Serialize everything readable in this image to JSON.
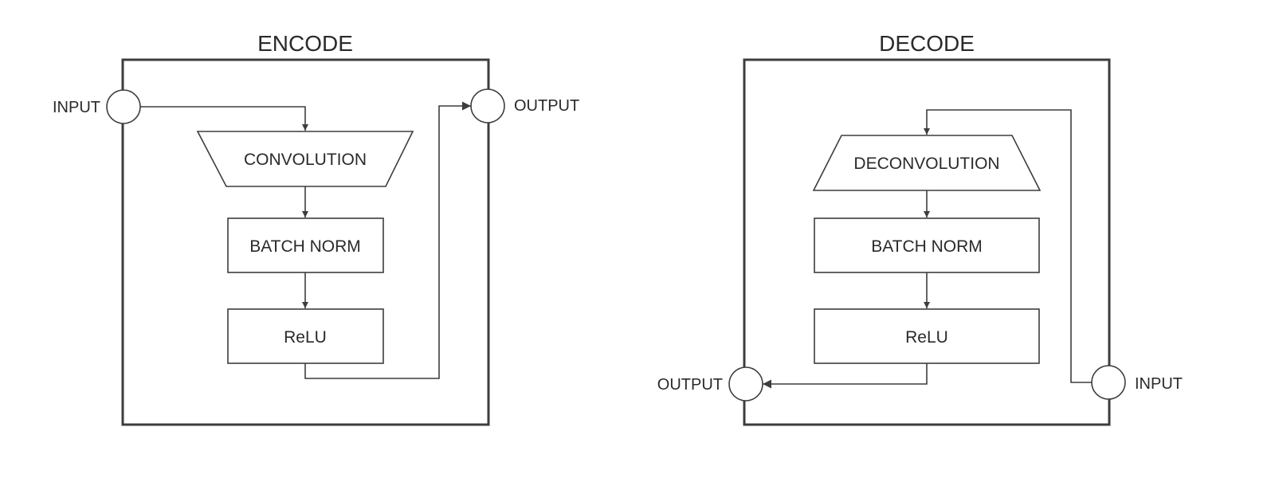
{
  "colors": {
    "stroke": "#3d3d3d",
    "text": "#2a2a2a",
    "background": "#ffffff"
  },
  "encode": {
    "title": "ENCODE",
    "input_label": "INPUT",
    "output_label": "OUTPUT",
    "blocks": [
      "CONVOLUTION",
      "BATCH NORM",
      "ReLU"
    ]
  },
  "decode": {
    "title": "DECODE",
    "input_label": "INPUT",
    "output_label": "OUTPUT",
    "blocks": [
      "DECONVOLUTION",
      "BATCH NORM",
      "ReLU"
    ]
  }
}
